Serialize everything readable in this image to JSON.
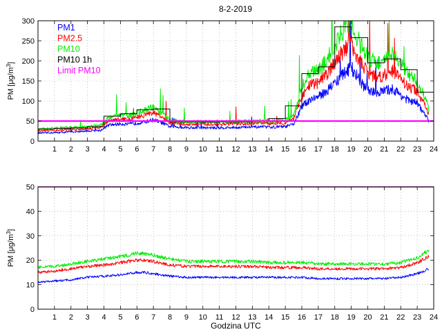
{
  "figure": {
    "title": "8-2-2019"
  },
  "chart_data": [
    {
      "type": "line",
      "title": "8-2-2019",
      "xlabel": "",
      "ylabel": "PM [μg/m",
      "ylabel_sup": "3",
      "ylabel_end": "]",
      "xlim": [
        0,
        24
      ],
      "ylim": [
        0,
        300
      ],
      "xticks": [
        1,
        2,
        3,
        4,
        5,
        6,
        7,
        8,
        9,
        10,
        11,
        12,
        13,
        14,
        15,
        16,
        17,
        18,
        19,
        20,
        21,
        22,
        23,
        24
      ],
      "yticks": [
        0,
        50,
        100,
        150,
        200,
        250,
        300
      ],
      "grid": true,
      "legend_position": "top-left",
      "series": [
        {
          "name": "PM1",
          "color": "#0000ff",
          "x": [
            0,
            1,
            2,
            3,
            3.8,
            4.3,
            5,
            5.5,
            6,
            6.5,
            7,
            7.5,
            8,
            9,
            10,
            11,
            12,
            13,
            14,
            15,
            15.5,
            16,
            16.5,
            17,
            17.5,
            18,
            18.5,
            19,
            19.5,
            20,
            20.5,
            21,
            21.5,
            22,
            22.5,
            23,
            23.4,
            23.7
          ],
          "values": [
            20,
            21,
            23,
            25,
            27,
            40,
            43,
            42,
            45,
            48,
            53,
            46,
            36,
            34,
            33,
            33,
            34,
            35,
            35,
            36,
            42,
            85,
            105,
            110,
            125,
            145,
            165,
            185,
            150,
            125,
            120,
            125,
            130,
            115,
            100,
            95,
            70,
            50
          ]
        },
        {
          "name": "PM2.5",
          "color": "#ff0000",
          "x": [
            0,
            1,
            2,
            3,
            3.8,
            4.3,
            5,
            5.5,
            6,
            6.5,
            7,
            7.5,
            8,
            9,
            10,
            11,
            12,
            13,
            14,
            15,
            15.5,
            16,
            16.5,
            17,
            17.5,
            18,
            18.5,
            19,
            19.5,
            20,
            20.5,
            21,
            21.5,
            22,
            22.5,
            23,
            23.4,
            23.7
          ],
          "values": [
            26,
            27,
            29,
            31,
            35,
            50,
            55,
            53,
            60,
            65,
            72,
            60,
            45,
            42,
            42,
            42,
            43,
            44,
            44,
            46,
            55,
            110,
            140,
            145,
            165,
            195,
            225,
            245,
            200,
            170,
            160,
            165,
            175,
            155,
            135,
            125,
            95,
            65
          ]
        },
        {
          "name": "PM10",
          "color": "#00ee00",
          "x": [
            0,
            1,
            2,
            3,
            3.8,
            4.3,
            5,
            5.5,
            6,
            6.5,
            7,
            7.5,
            8,
            9,
            10,
            11,
            12,
            13,
            14,
            15,
            15.5,
            16,
            16.5,
            17,
            17.5,
            18,
            18.5,
            19,
            19.5,
            20,
            20.5,
            21,
            21.5,
            22,
            22.5,
            23,
            23.4,
            23.7
          ],
          "values": [
            30,
            32,
            34,
            36,
            40,
            60,
            65,
            63,
            70,
            78,
            85,
            70,
            52,
            48,
            48,
            48,
            49,
            50,
            50,
            53,
            63,
            135,
            170,
            175,
            200,
            240,
            275,
            295,
            245,
            210,
            195,
            200,
            215,
            190,
            165,
            150,
            115,
            80
          ]
        },
        {
          "name": "PM10 1h",
          "color": "#000000",
          "step": true,
          "x": [
            0,
            1,
            2,
            3,
            4,
            5,
            6,
            7,
            8,
            9,
            10,
            11,
            12,
            13,
            14,
            15,
            16,
            17,
            18,
            19,
            20,
            21,
            22,
            23,
            24
          ],
          "values": [
            30,
            32,
            33,
            36,
            62,
            68,
            78,
            80,
            48,
            48,
            47,
            48,
            48,
            50,
            56,
            88,
            168,
            185,
            285,
            258,
            195,
            205,
            178,
            122,
            122
          ]
        },
        {
          "name": "Limit PM10",
          "color": "#ff00ff",
          "constant": 50
        }
      ]
    },
    {
      "type": "line",
      "title": "",
      "xlabel": "Godzina UTC",
      "ylabel": "PM [μg/m",
      "ylabel_sup": "3",
      "ylabel_end": "]",
      "xlim": [
        0,
        24
      ],
      "ylim": [
        0,
        50
      ],
      "xticks": [
        1,
        2,
        3,
        4,
        5,
        6,
        7,
        8,
        9,
        10,
        11,
        12,
        13,
        14,
        15,
        16,
        17,
        18,
        19,
        20,
        21,
        22,
        23,
        24
      ],
      "yticks": [
        0,
        10,
        20,
        30,
        40,
        50
      ],
      "grid": true,
      "series": [
        {
          "name": "PM1",
          "color": "#0000ff",
          "x": [
            0,
            1,
            2,
            3,
            4,
            5,
            5.5,
            6,
            6.5,
            7,
            8,
            9,
            10,
            11,
            12,
            13,
            14,
            15,
            16,
            17,
            18,
            19,
            20,
            21,
            22,
            23,
            23.7
          ],
          "values": [
            11,
            11.5,
            12,
            13,
            13.5,
            14,
            14.5,
            15,
            15,
            14.5,
            13.5,
            13,
            13,
            13,
            13,
            13,
            13,
            13,
            13,
            12.5,
            12.5,
            12.5,
            12.5,
            12.5,
            13,
            14.5,
            16.5
          ]
        },
        {
          "name": "PM2.5",
          "color": "#ff0000",
          "x": [
            0,
            1,
            2,
            3,
            4,
            5,
            5.5,
            6,
            6.5,
            7,
            8,
            9,
            10,
            11,
            12,
            13,
            14,
            15,
            16,
            17,
            18,
            19,
            20,
            21,
            22,
            23,
            23.7
          ],
          "values": [
            15,
            15.5,
            16.5,
            17.5,
            18,
            19,
            19.5,
            20,
            20,
            19.5,
            18,
            17.5,
            17.5,
            17.5,
            17.5,
            17.5,
            17,
            17,
            17,
            16.5,
            16.5,
            16.5,
            16.5,
            16.5,
            17,
            19,
            21.5
          ]
        },
        {
          "name": "PM10",
          "color": "#00ee00",
          "x": [
            0,
            1,
            2,
            3,
            4,
            5,
            5.5,
            6,
            6.5,
            7,
            8,
            9,
            10,
            11,
            12,
            13,
            14,
            15,
            16,
            17,
            18,
            19,
            20,
            21,
            22,
            23,
            23.7
          ],
          "values": [
            17,
            17.5,
            18.5,
            19.5,
            20.5,
            21.5,
            22,
            23,
            22.5,
            22,
            20.5,
            19.5,
            19.5,
            19.5,
            19.5,
            19.5,
            19,
            19,
            19,
            18.5,
            18.5,
            18.5,
            18.5,
            18.5,
            19,
            21,
            24
          ]
        },
        {
          "name": "Limit PM10",
          "color": "#ff00ff",
          "constant": 50
        }
      ]
    }
  ]
}
